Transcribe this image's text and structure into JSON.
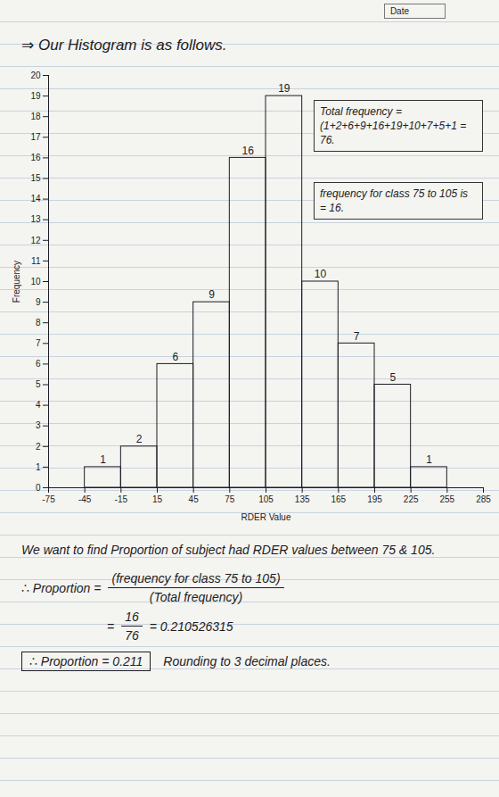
{
  "header": {
    "date": "Date"
  },
  "chart_data": {
    "type": "histogram",
    "title": "⇒ Our Histogram is as follows.",
    "bins": [
      -45,
      -15,
      15,
      45,
      75,
      105,
      135,
      165,
      195,
      225,
      255
    ],
    "values": [
      1,
      2,
      6,
      9,
      16,
      19,
      10,
      7,
      5,
      1
    ],
    "color": "#1c1c24",
    "xlim": [
      -75,
      285
    ],
    "xticks": [
      -75,
      -45,
      -15,
      15,
      45,
      75,
      105,
      135,
      165,
      195,
      225,
      255,
      285
    ],
    "ylim": [
      0,
      20
    ],
    "yticks": [
      0,
      1,
      2,
      3,
      4,
      5,
      6,
      7,
      8,
      9,
      10,
      11,
      12,
      13,
      14,
      15,
      16,
      17,
      18,
      19,
      20
    ],
    "x_label": "RDER Value",
    "y_label": "Frequency",
    "data_labels": true,
    "annotations": [
      "Total frequency = (1+2+6+9+16+19+10+7+5+1 = 76.",
      "frequency for class 75 to 105 is = 16."
    ]
  },
  "solution": {
    "intro": "We want to find Proportion of subject had RDER values between 75 & 105.",
    "formula": {
      "lhs": "∴ Proportion =",
      "numerator": "(frequency for class 75 to 105)",
      "denominator": "(Total frequency)"
    },
    "computation": {
      "lead": "=",
      "numerator": "16",
      "denominator": "76",
      "result": "= 0.210526315"
    },
    "answer": "∴ Proportion = 0.211",
    "note": "Rounding to 3 decimal places."
  }
}
